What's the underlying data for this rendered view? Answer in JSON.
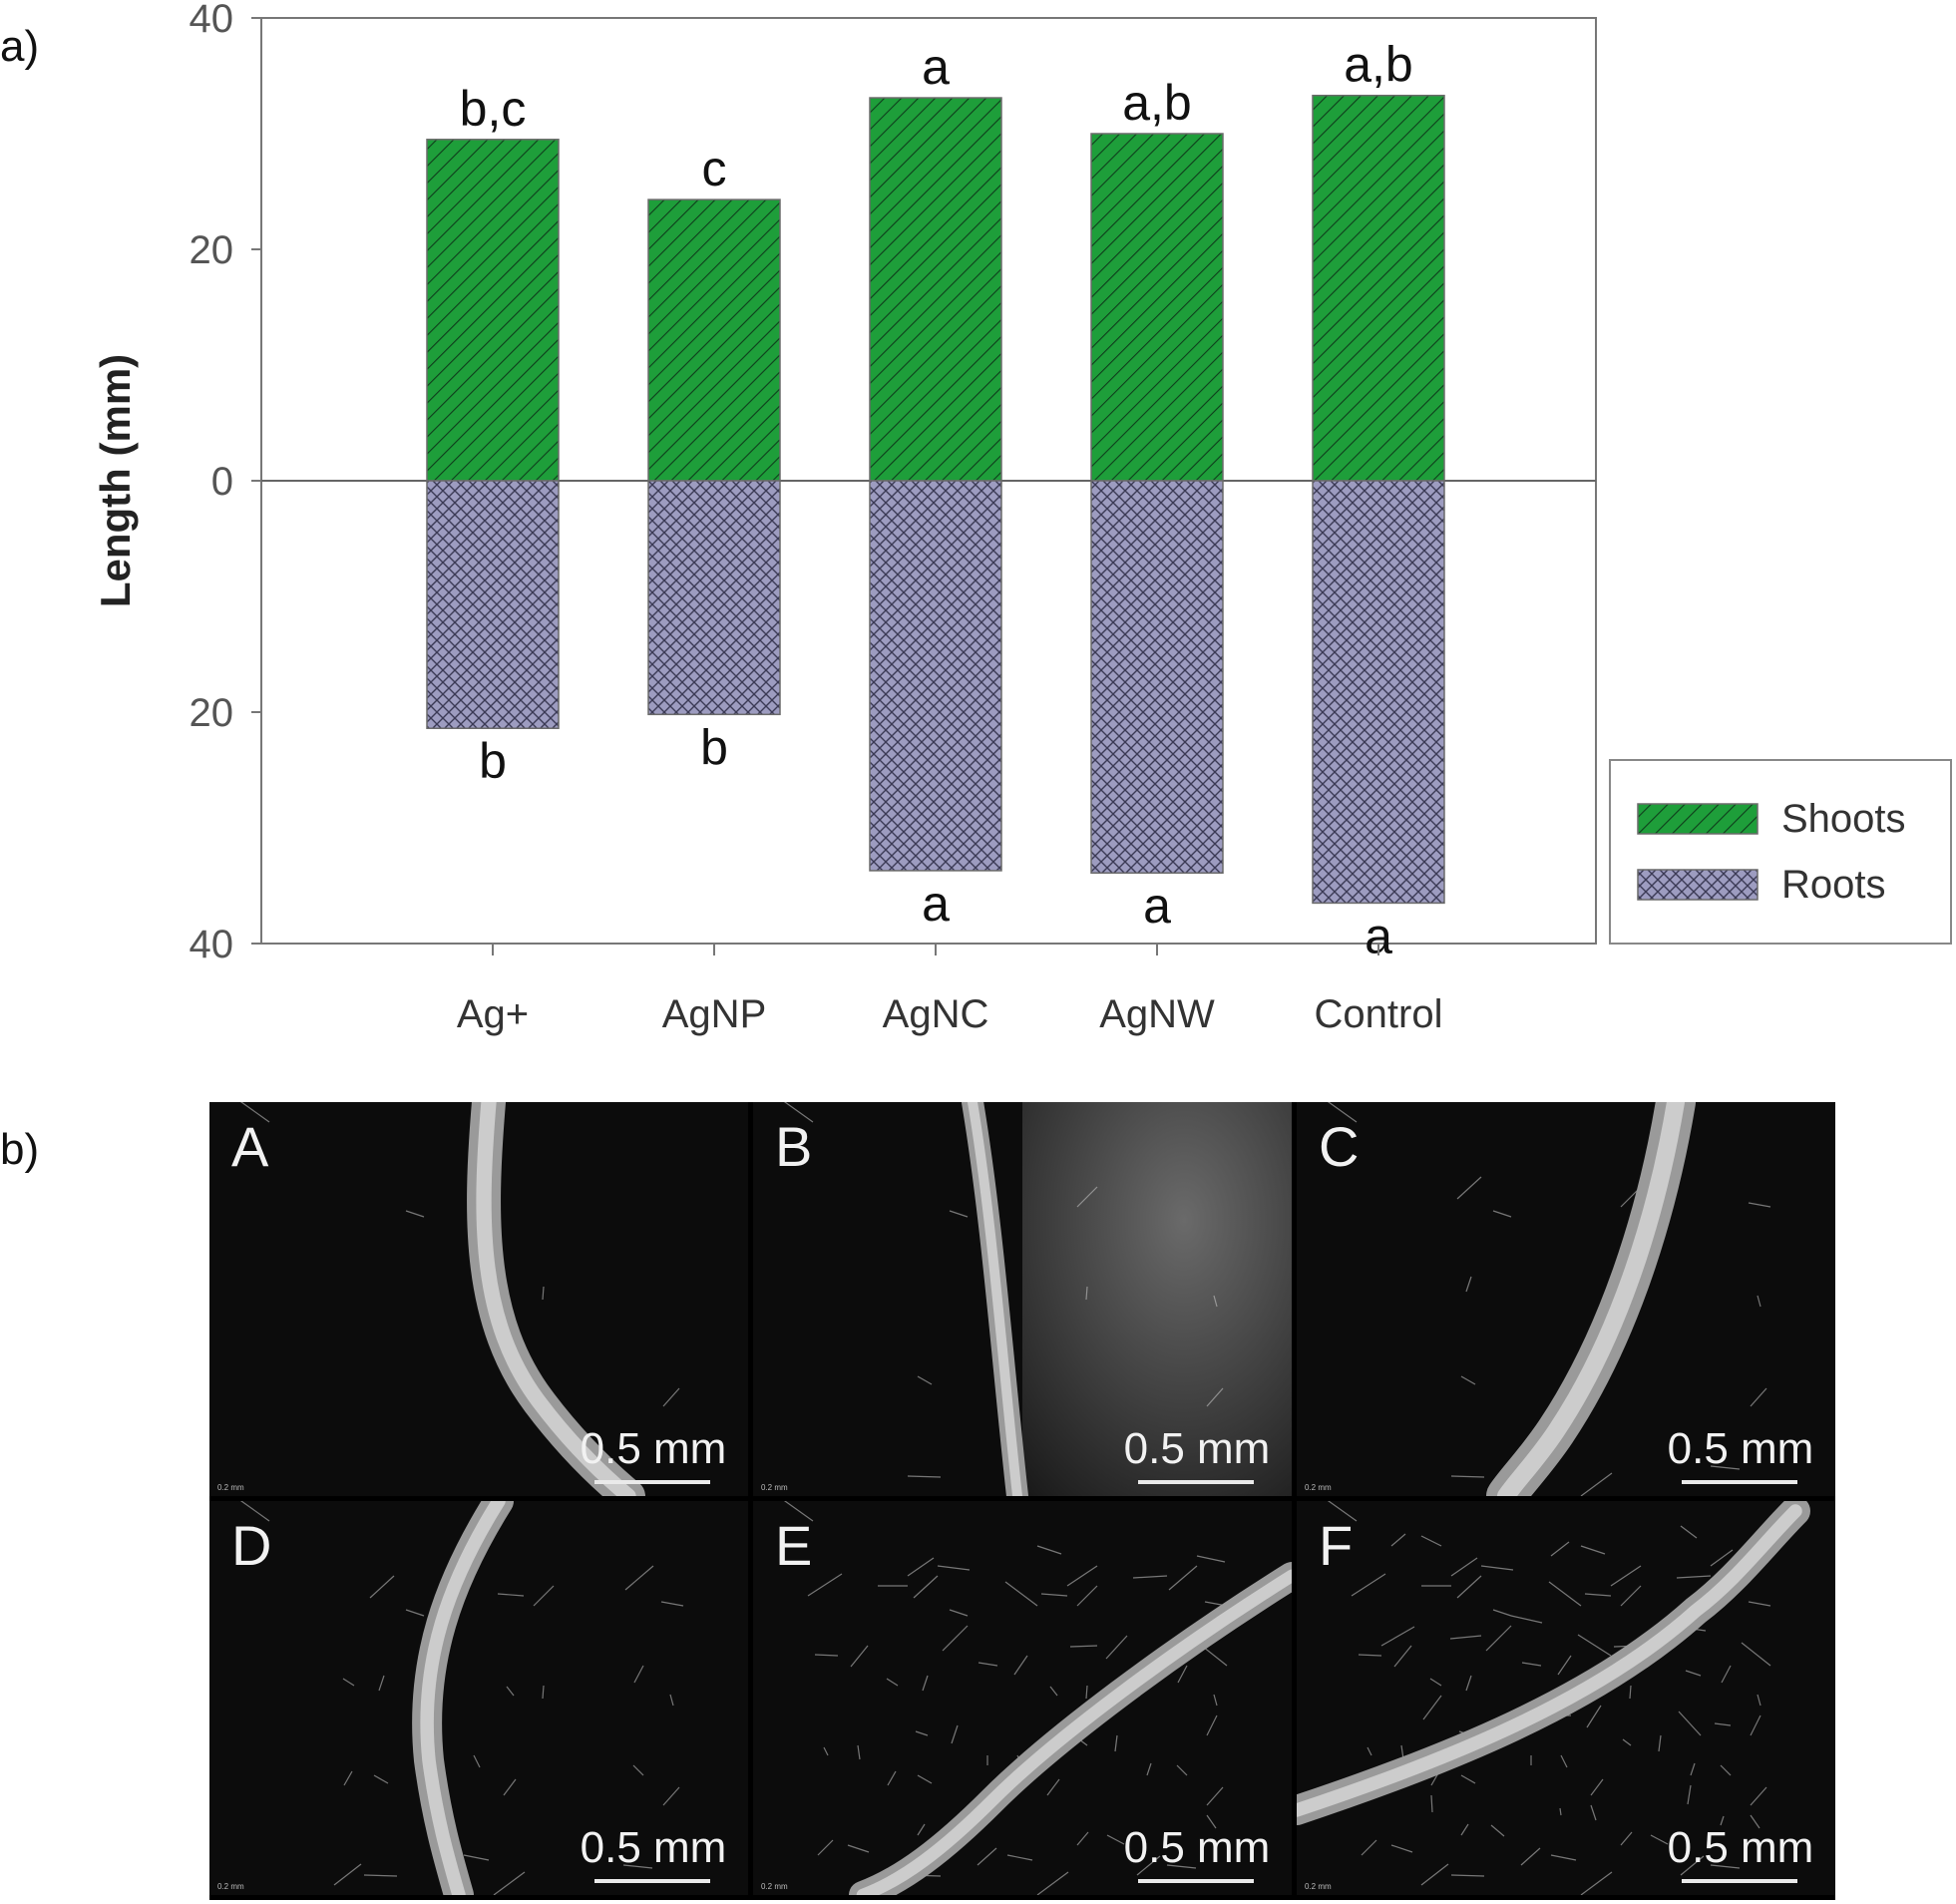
{
  "panels": {
    "a": "a)",
    "b": "b)"
  },
  "chart_data": {
    "type": "bar",
    "categories": [
      "Ag+",
      "AgNP",
      "AgNC",
      "AgNW",
      "Control"
    ],
    "series": [
      {
        "name": "Shoots",
        "values": [
          29.5,
          24.3,
          33.1,
          30.0,
          33.3
        ],
        "color": "#1e9e3a",
        "pattern": "diagonal-hatch",
        "letters": [
          "b,c",
          "c",
          "a",
          "a,b",
          "a,b"
        ]
      },
      {
        "name": "Roots",
        "values": [
          21.4,
          20.2,
          33.7,
          33.9,
          36.5
        ],
        "color": "#9d9cc0",
        "pattern": "cross-hatch",
        "letters": [
          "b",
          "b",
          "a",
          "a",
          "a"
        ]
      }
    ],
    "ylabel": "Length (mm)",
    "ylim": [
      -40,
      40
    ],
    "yticks": [
      40,
      20,
      0,
      20,
      40
    ],
    "grid": false,
    "legend_position": "right"
  },
  "micrographs": [
    {
      "letter": "A",
      "scale": "0.5 mm",
      "tiny": "0.2 mm"
    },
    {
      "letter": "B",
      "scale": "0.5 mm",
      "tiny": "0.2 mm"
    },
    {
      "letter": "C",
      "scale": "0.5 mm",
      "tiny": "0.2 mm"
    },
    {
      "letter": "D",
      "scale": "0.5 mm",
      "tiny": "0.2 mm"
    },
    {
      "letter": "E",
      "scale": "0.5 mm",
      "tiny": "0.2 mm"
    },
    {
      "letter": "F",
      "scale": "0.5 mm",
      "tiny": "0.2 mm"
    }
  ]
}
